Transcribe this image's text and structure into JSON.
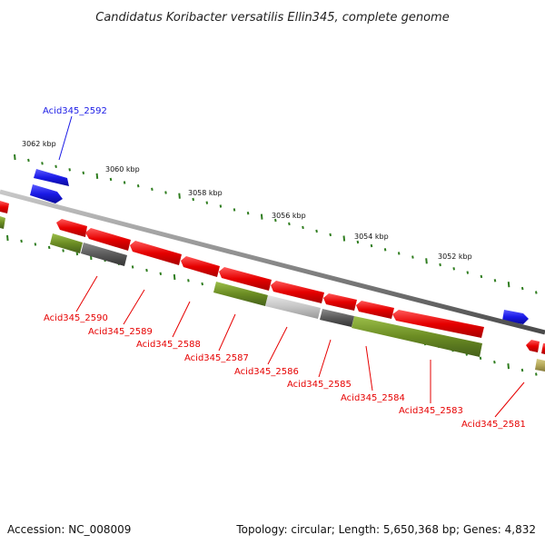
{
  "title": "Candidatus Koribacter versatilis Ellin345, complete genome",
  "footer": {
    "accession": "Accession: NC_008009",
    "summary": "Topology: circular; Length: 5,650,368 bp; Genes: 4,832"
  },
  "scale_labels": [
    "3062 kbp",
    "3060 kbp",
    "3058 kbp",
    "3056 kbp",
    "3054 kbp",
    "3052 kbp"
  ],
  "colors": {
    "forward_gene": "#1a1ae6",
    "reverse_gene": "#e60000",
    "cds_olive": "#6b8c23",
    "cds_dark_grey": "#555555",
    "cds_light_grey": "#bdbdbd",
    "cds_khaki": "#b5a95a",
    "tick": "#2f7d1f",
    "backbone": "#8a8a8a"
  },
  "gene_labels": [
    {
      "text": "Acid345_2592",
      "strand": "forward"
    },
    {
      "text": "Acid345_2590",
      "strand": "reverse"
    },
    {
      "text": "Acid345_2589",
      "strand": "reverse"
    },
    {
      "text": "Acid345_2588",
      "strand": "reverse"
    },
    {
      "text": "Acid345_2587",
      "strand": "reverse"
    },
    {
      "text": "Acid345_2586",
      "strand": "reverse"
    },
    {
      "text": "Acid345_2585",
      "strand": "reverse"
    },
    {
      "text": "Acid345_2584",
      "strand": "reverse"
    },
    {
      "text": "Acid345_2583",
      "strand": "reverse"
    },
    {
      "text": "Acid345_2581",
      "strand": "reverse"
    }
  ]
}
